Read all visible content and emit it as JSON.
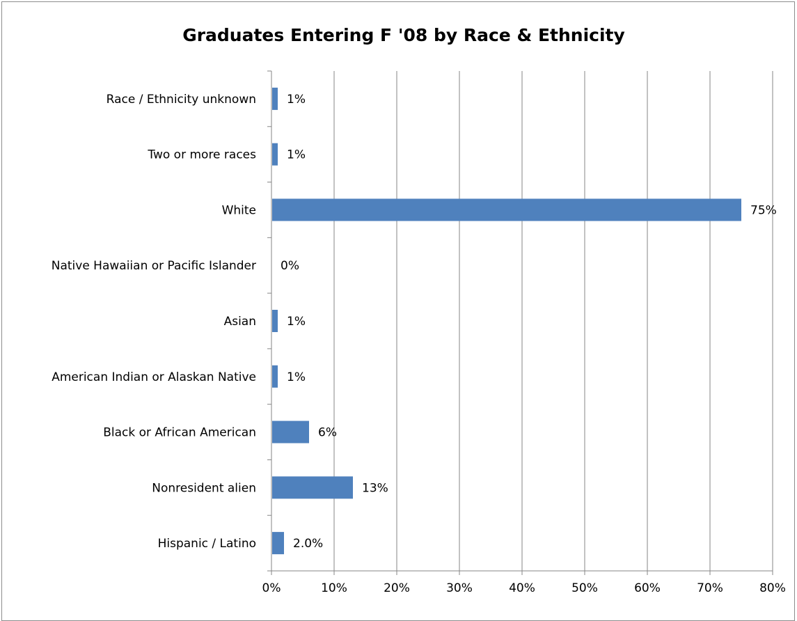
{
  "chart_data": {
    "type": "bar",
    "orientation": "horizontal",
    "title": "Graduates Entering F '08 by Race & Ethnicity",
    "categories": [
      "Race / Ethnicity unknown",
      "Two or more races",
      "White",
      "Native Hawaiian or Pacific Islander",
      "Asian",
      "American Indian or Alaskan Native",
      "Black or African American",
      "Nonresident alien",
      "Hispanic / Latino"
    ],
    "values": [
      1,
      1,
      75,
      0,
      1,
      1,
      6,
      13,
      2
    ],
    "data_labels": [
      "1%",
      "1%",
      "75%",
      "0%",
      "1%",
      "1%",
      "6%",
      "13%",
      "2.0%"
    ],
    "xlim": [
      0,
      80
    ],
    "x_ticks": [
      0,
      10,
      20,
      30,
      40,
      50,
      60,
      70,
      80
    ],
    "x_tick_labels": [
      "0%",
      "10%",
      "20%",
      "30%",
      "40%",
      "50%",
      "60%",
      "70%",
      "80%"
    ],
    "xlabel": "",
    "ylabel": "",
    "grid": "vertical",
    "legend": "none",
    "bar_color": "#4f81bd",
    "grid_color": "#868686"
  }
}
